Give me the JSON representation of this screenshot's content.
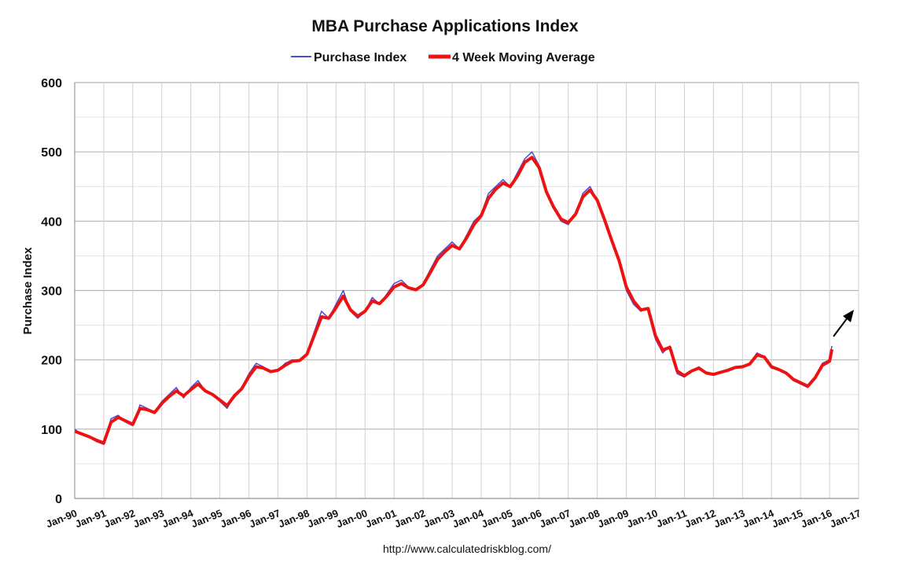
{
  "chart_data": {
    "type": "line",
    "title": "MBA Purchase Applications Index",
    "ylabel": "Purchase Index",
    "xlabel": "",
    "source": "http://www.calculatedriskblog.com/",
    "ylim": [
      0,
      600
    ],
    "yticks": [
      0,
      100,
      200,
      300,
      400,
      500,
      600
    ],
    "xlim": [
      1990,
      2017
    ],
    "xticks": [
      {
        "label": "Jan-90",
        "x": 1990
      },
      {
        "label": "Jan-91",
        "x": 1991
      },
      {
        "label": "Jan-92",
        "x": 1992
      },
      {
        "label": "Jan-93",
        "x": 1993
      },
      {
        "label": "Jan-94",
        "x": 1994
      },
      {
        "label": "Jan-95",
        "x": 1995
      },
      {
        "label": "Jan-96",
        "x": 1996
      },
      {
        "label": "Jan-97",
        "x": 1997
      },
      {
        "label": "Jan-98",
        "x": 1998
      },
      {
        "label": "Jan-99",
        "x": 1999
      },
      {
        "label": "Jan-00",
        "x": 2000
      },
      {
        "label": "Jan-01",
        "x": 2001
      },
      {
        "label": "Jan-02",
        "x": 2002
      },
      {
        "label": "Jan-03",
        "x": 2003
      },
      {
        "label": "Jan-04",
        "x": 2004
      },
      {
        "label": "Jan-05",
        "x": 2005
      },
      {
        "label": "Jan-06",
        "x": 2006
      },
      {
        "label": "Jan-07",
        "x": 2007
      },
      {
        "label": "Jan-08",
        "x": 2008
      },
      {
        "label": "Jan-09",
        "x": 2009
      },
      {
        "label": "Jan-10",
        "x": 2010
      },
      {
        "label": "Jan-11",
        "x": 2011
      },
      {
        "label": "Jan-12",
        "x": 2012
      },
      {
        "label": "Jan-13",
        "x": 2013
      },
      {
        "label": "Jan-14",
        "x": 2014
      },
      {
        "label": "Jan-15",
        "x": 2015
      },
      {
        "label": "Jan-16",
        "x": 2016
      },
      {
        "label": "Jan-17",
        "x": 2017
      }
    ],
    "grid": true,
    "legend_position": "top-center",
    "series": [
      {
        "name": "Purchase Index",
        "color": "#4b4bd6",
        "x": [
          1990.0,
          1990.25,
          1990.5,
          1990.75,
          1991.0,
          1991.25,
          1991.5,
          1991.75,
          1992.0,
          1992.25,
          1992.5,
          1992.75,
          1993.0,
          1993.25,
          1993.5,
          1993.75,
          1994.0,
          1994.25,
          1994.5,
          1994.75,
          1995.0,
          1995.25,
          1995.5,
          1995.75,
          1996.0,
          1996.25,
          1996.5,
          1996.75,
          1997.0,
          1997.25,
          1997.5,
          1997.75,
          1998.0,
          1998.25,
          1998.5,
          1998.75,
          1999.0,
          1999.25,
          1999.5,
          1999.75,
          2000.0,
          2000.25,
          2000.5,
          2000.75,
          2001.0,
          2001.25,
          2001.5,
          2001.75,
          2002.0,
          2002.25,
          2002.5,
          2002.75,
          2003.0,
          2003.25,
          2003.5,
          2003.75,
          2004.0,
          2004.25,
          2004.5,
          2004.75,
          2005.0,
          2005.25,
          2005.5,
          2005.75,
          2006.0,
          2006.25,
          2006.5,
          2006.75,
          2007.0,
          2007.25,
          2007.5,
          2007.75,
          2008.0,
          2008.25,
          2008.5,
          2008.75,
          2009.0,
          2009.25,
          2009.5,
          2009.75,
          2010.0,
          2010.25,
          2010.5,
          2010.75,
          2011.0,
          2011.25,
          2011.5,
          2011.75,
          2012.0,
          2012.25,
          2012.5,
          2012.75,
          2013.0,
          2013.25,
          2013.5,
          2013.75,
          2014.0,
          2014.25,
          2014.5,
          2014.75,
          2015.0,
          2015.25,
          2015.5,
          2015.75,
          2016.0,
          2016.08
        ],
        "values": [
          100,
          92,
          88,
          82,
          78,
          115,
          120,
          110,
          105,
          135,
          130,
          125,
          140,
          150,
          160,
          145,
          160,
          170,
          155,
          150,
          140,
          130,
          150,
          160,
          180,
          195,
          190,
          182,
          185,
          195,
          200,
          198,
          210,
          240,
          270,
          260,
          280,
          300,
          270,
          260,
          270,
          290,
          280,
          295,
          310,
          315,
          305,
          300,
          310,
          330,
          350,
          360,
          370,
          360,
          380,
          400,
          410,
          440,
          450,
          460,
          450,
          470,
          490,
          500,
          480,
          440,
          420,
          400,
          395,
          410,
          440,
          450,
          430,
          400,
          370,
          340,
          300,
          280,
          270,
          275,
          230,
          210,
          220,
          180,
          175,
          185,
          190,
          180,
          178,
          182,
          185,
          190,
          190,
          195,
          210,
          205,
          188,
          185,
          180,
          170,
          165,
          160,
          175,
          195,
          200,
          220
        ]
      },
      {
        "name": "4 Week Moving Average",
        "color": "#ee1111",
        "x": [
          1990.0,
          1990.25,
          1990.5,
          1990.75,
          1991.0,
          1991.25,
          1991.5,
          1991.75,
          1992.0,
          1992.25,
          1992.5,
          1992.75,
          1993.0,
          1993.25,
          1993.5,
          1993.75,
          1994.0,
          1994.25,
          1994.5,
          1994.75,
          1995.0,
          1995.25,
          1995.5,
          1995.75,
          1996.0,
          1996.25,
          1996.5,
          1996.75,
          1997.0,
          1997.25,
          1997.5,
          1997.75,
          1998.0,
          1998.25,
          1998.5,
          1998.75,
          1999.0,
          1999.25,
          1999.5,
          1999.75,
          2000.0,
          2000.25,
          2000.5,
          2000.75,
          2001.0,
          2001.25,
          2001.5,
          2001.75,
          2002.0,
          2002.25,
          2002.5,
          2002.75,
          2003.0,
          2003.25,
          2003.5,
          2003.75,
          2004.0,
          2004.25,
          2004.5,
          2004.75,
          2005.0,
          2005.25,
          2005.5,
          2005.75,
          2006.0,
          2006.25,
          2006.5,
          2006.75,
          2007.0,
          2007.25,
          2007.5,
          2007.75,
          2008.0,
          2008.25,
          2008.5,
          2008.75,
          2009.0,
          2009.25,
          2009.5,
          2009.75,
          2010.0,
          2010.25,
          2010.5,
          2010.75,
          2011.0,
          2011.25,
          2011.5,
          2011.75,
          2012.0,
          2012.25,
          2012.5,
          2012.75,
          2013.0,
          2013.25,
          2013.5,
          2013.75,
          2014.0,
          2014.25,
          2014.5,
          2014.75,
          2015.0,
          2015.25,
          2015.5,
          2015.75,
          2016.0,
          2016.08
        ],
        "values": [
          97,
          93,
          89,
          84,
          80,
          110,
          117,
          112,
          107,
          130,
          128,
          124,
          137,
          147,
          155,
          148,
          157,
          165,
          155,
          150,
          142,
          134,
          148,
          158,
          176,
          190,
          188,
          183,
          185,
          192,
          198,
          199,
          208,
          235,
          262,
          260,
          275,
          292,
          272,
          263,
          270,
          285,
          281,
          292,
          305,
          310,
          304,
          301,
          308,
          326,
          345,
          356,
          365,
          360,
          376,
          395,
          408,
          433,
          446,
          455,
          450,
          465,
          485,
          492,
          477,
          442,
          420,
          403,
          398,
          410,
          435,
          445,
          430,
          402,
          372,
          343,
          305,
          285,
          272,
          274,
          235,
          214,
          218,
          184,
          177,
          184,
          188,
          181,
          179,
          182,
          185,
          189,
          190,
          194,
          207,
          204,
          190,
          186,
          181,
          172,
          167,
          162,
          174,
          192,
          198,
          215
        ]
      }
    ]
  },
  "annotations": {
    "arrow_name": "trend-arrow"
  }
}
